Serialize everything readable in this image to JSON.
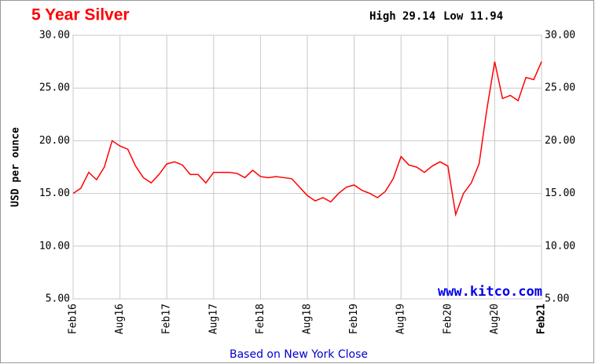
{
  "chart_data": {
    "type": "line",
    "title": "5 Year Silver",
    "high_label": "High",
    "high": "29.14",
    "low_label": "Low",
    "low": "11.94",
    "y_label": "USD per ounce",
    "watermark": "www.kitco.com",
    "footnote": "Based on New York Close",
    "x": [
      "2016-02",
      "2016-03",
      "2016-04",
      "2016-05",
      "2016-06",
      "2016-07",
      "2016-08",
      "2016-09",
      "2016-10",
      "2016-11",
      "2016-12",
      "2017-01",
      "2017-02",
      "2017-03",
      "2017-04",
      "2017-05",
      "2017-06",
      "2017-07",
      "2017-08",
      "2017-09",
      "2017-10",
      "2017-11",
      "2017-12",
      "2018-01",
      "2018-02",
      "2018-03",
      "2018-04",
      "2018-05",
      "2018-06",
      "2018-07",
      "2018-08",
      "2018-09",
      "2018-10",
      "2018-11",
      "2018-12",
      "2019-01",
      "2019-02",
      "2019-03",
      "2019-04",
      "2019-05",
      "2019-06",
      "2019-07",
      "2019-08",
      "2019-09",
      "2019-10",
      "2019-11",
      "2019-12",
      "2020-01",
      "2020-02",
      "2020-03",
      "2020-04",
      "2020-05",
      "2020-06",
      "2020-07",
      "2020-08",
      "2020-09",
      "2020-10",
      "2020-11",
      "2020-12",
      "2021-01",
      "2021-02"
    ],
    "series": [
      {
        "name": "Silver",
        "color": "#ff0000",
        "values": [
          15.0,
          15.5,
          17.0,
          16.3,
          17.5,
          20.0,
          19.5,
          19.2,
          17.6,
          16.5,
          16.0,
          16.8,
          17.8,
          18.0,
          17.7,
          16.8,
          16.8,
          16.0,
          17.0,
          17.0,
          17.0,
          16.9,
          16.5,
          17.2,
          16.6,
          16.5,
          16.6,
          16.5,
          16.4,
          15.6,
          14.8,
          14.3,
          14.6,
          14.2,
          15.0,
          15.6,
          15.8,
          15.3,
          15.0,
          14.6,
          15.2,
          16.4,
          18.5,
          17.7,
          17.5,
          17.0,
          17.6,
          18.0,
          17.6,
          13.0,
          15.0,
          16.0,
          17.8,
          23.0,
          27.5,
          24.0,
          24.3,
          23.8,
          26.0,
          25.8,
          27.5
        ]
      }
    ],
    "ylim": [
      5,
      30
    ],
    "yticks": [
      {
        "value": 5,
        "label": "5.00"
      },
      {
        "value": 10,
        "label": "10.00"
      },
      {
        "value": 15,
        "label": "15.00"
      },
      {
        "value": 20,
        "label": "20.00"
      },
      {
        "value": 25,
        "label": "25.00"
      },
      {
        "value": 30,
        "label": "30.00"
      }
    ],
    "xticks": [
      {
        "value": "2016-02",
        "label": "Feb16"
      },
      {
        "value": "2016-08",
        "label": "Aug16"
      },
      {
        "value": "2017-02",
        "label": "Feb17"
      },
      {
        "value": "2017-08",
        "label": "Aug17"
      },
      {
        "value": "2018-02",
        "label": "Feb18"
      },
      {
        "value": "2018-08",
        "label": "Aug18"
      },
      {
        "value": "2019-02",
        "label": "Feb19"
      },
      {
        "value": "2019-08",
        "label": "Aug19"
      },
      {
        "value": "2020-02",
        "label": "Feb20"
      },
      {
        "value": "2020-08",
        "label": "Aug20"
      },
      {
        "value": "2021-02",
        "label": "Feb21"
      }
    ],
    "grid": true
  }
}
